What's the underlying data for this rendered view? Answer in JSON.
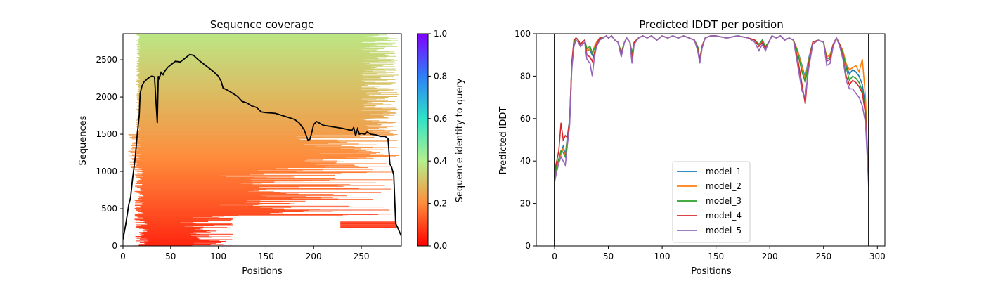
{
  "chart_data": [
    {
      "type": "heatmap",
      "title": "Sequence coverage",
      "xlabel": "Positions",
      "ylabel": "Sequences",
      "xlim": [
        0,
        292
      ],
      "ylim": [
        0,
        2850
      ],
      "xticks": [
        0,
        50,
        100,
        150,
        200,
        250
      ],
      "yticks": [
        0,
        500,
        1000,
        1500,
        2000,
        2500
      ],
      "colorbar": {
        "label": "Sequence identity to query",
        "range": [
          0.0,
          1.0
        ],
        "ticks": [
          "0.0",
          "0.2",
          "0.4",
          "0.6",
          "0.8",
          "1.0"
        ],
        "colormap": "rainbow_r"
      },
      "coverage_line": {
        "color": "#000000",
        "x": [
          0,
          3,
          6,
          8,
          10,
          13,
          15,
          17,
          18,
          20,
          22,
          26,
          30,
          33,
          36,
          37,
          38,
          40,
          42,
          44,
          47,
          50,
          55,
          60,
          65,
          70,
          74,
          78,
          82,
          86,
          90,
          95,
          100,
          103,
          105,
          110,
          115,
          120,
          125,
          130,
          135,
          140,
          145,
          150,
          160,
          170,
          180,
          185,
          190,
          194,
          196,
          198,
          200,
          203,
          206,
          210,
          220,
          230,
          240,
          242,
          244,
          246,
          248,
          250,
          254,
          256,
          260,
          266,
          270,
          275,
          278,
          280,
          282,
          284,
          286,
          288,
          290,
          292
        ],
        "y": [
          90,
          300,
          550,
          650,
          900,
          1200,
          1500,
          1750,
          2050,
          2150,
          2200,
          2250,
          2280,
          2270,
          1650,
          2280,
          2250,
          2330,
          2300,
          2350,
          2400,
          2430,
          2480,
          2470,
          2520,
          2570,
          2560,
          2510,
          2470,
          2430,
          2390,
          2340,
          2280,
          2210,
          2120,
          2090,
          2050,
          2010,
          1940,
          1920,
          1880,
          1860,
          1800,
          1790,
          1780,
          1740,
          1700,
          1650,
          1560,
          1420,
          1430,
          1520,
          1630,
          1670,
          1650,
          1620,
          1600,
          1580,
          1550,
          1590,
          1480,
          1570,
          1500,
          1510,
          1500,
          1530,
          1500,
          1490,
          1470,
          1470,
          1440,
          1100,
          1050,
          950,
          300,
          250,
          190,
          130
        ]
      }
    },
    {
      "type": "line",
      "title": "Predicted lDDT per position",
      "xlabel": "Positions",
      "ylabel": "Predicted lDDT",
      "xlim": [
        -17,
        307
      ],
      "ylim": [
        0,
        100
      ],
      "xticks": [
        0,
        50,
        100,
        150,
        200,
        250,
        300
      ],
      "yticks": [
        0,
        20,
        40,
        60,
        80,
        100
      ],
      "vlines": [
        0,
        292
      ],
      "legend": {
        "position": "lower-center"
      },
      "x": [
        0,
        2,
        4,
        6,
        8,
        10,
        12,
        14,
        16,
        18,
        20,
        22,
        24,
        26,
        28,
        30,
        33,
        35,
        37,
        39,
        42,
        45,
        48,
        50,
        53,
        56,
        59,
        62,
        65,
        67,
        70,
        72,
        74,
        78,
        82,
        86,
        90,
        95,
        100,
        105,
        110,
        115,
        120,
        125,
        130,
        133,
        135,
        137,
        140,
        145,
        150,
        160,
        170,
        180,
        186,
        190,
        193,
        196,
        199,
        202,
        206,
        210,
        214,
        218,
        222,
        226,
        230,
        233,
        236,
        240,
        245,
        250,
        253,
        256,
        259,
        262,
        265,
        268,
        271,
        274,
        277,
        280,
        283,
        286,
        289,
        292
      ],
      "series": [
        {
          "name": "model_1",
          "color": "#1f77b4",
          "values": [
            33,
            38,
            41,
            44,
            47,
            43,
            52,
            60,
            86,
            96,
            98,
            97,
            95,
            96,
            97,
            92,
            92,
            90,
            94,
            96,
            98,
            98,
            99,
            98,
            99,
            97,
            96,
            91,
            96,
            98,
            96,
            90,
            96,
            98,
            99,
            98,
            99,
            97,
            99,
            98,
            99,
            98,
            99,
            98,
            97,
            94,
            88,
            94,
            98,
            99,
            99,
            98,
            99,
            98,
            97,
            95,
            97,
            94,
            96,
            99,
            98,
            99,
            97,
            98,
            97,
            92,
            85,
            79,
            88,
            96,
            97,
            96,
            89,
            90,
            95,
            98,
            95,
            92,
            85,
            81,
            83,
            82,
            80,
            76,
            66,
            28
          ]
        },
        {
          "name": "model_2",
          "color": "#ff7f0e",
          "values": [
            32,
            37,
            40,
            43,
            46,
            42,
            51,
            59,
            85,
            95,
            98,
            97,
            95,
            96,
            97,
            92,
            93,
            91,
            94,
            96,
            98,
            98,
            99,
            98,
            99,
            97,
            96,
            91,
            96,
            98,
            96,
            90,
            96,
            98,
            99,
            98,
            99,
            97,
            99,
            98,
            99,
            98,
            99,
            98,
            97,
            94,
            88,
            94,
            98,
            99,
            99,
            98,
            99,
            98,
            97,
            95,
            97,
            94,
            96,
            99,
            98,
            99,
            97,
            98,
            97,
            92,
            84,
            78,
            87,
            96,
            97,
            96,
            89,
            90,
            95,
            98,
            95,
            92,
            86,
            83,
            84,
            85,
            82,
            88,
            70,
            29
          ]
        },
        {
          "name": "model_3",
          "color": "#2ca02c",
          "values": [
            32,
            38,
            41,
            45,
            44,
            42,
            50,
            58,
            84,
            96,
            98,
            97,
            95,
            96,
            97,
            93,
            94,
            91,
            93,
            95,
            98,
            98,
            99,
            98,
            99,
            97,
            96,
            91,
            96,
            98,
            96,
            91,
            96,
            98,
            99,
            98,
            99,
            97,
            99,
            98,
            99,
            98,
            99,
            98,
            97,
            94,
            88,
            94,
            98,
            99,
            99,
            98,
            99,
            98,
            97,
            95,
            97,
            94,
            96,
            99,
            98,
            99,
            97,
            98,
            97,
            91,
            82,
            77,
            86,
            96,
            97,
            96,
            88,
            89,
            95,
            98,
            95,
            91,
            84,
            78,
            80,
            79,
            77,
            73,
            64,
            30
          ]
        },
        {
          "name": "model_4",
          "color": "#d62728",
          "values": [
            35,
            40,
            45,
            58,
            50,
            52,
            51,
            59,
            86,
            97,
            98,
            97,
            95,
            96,
            97,
            90,
            89,
            87,
            91,
            95,
            98,
            98,
            99,
            98,
            99,
            97,
            96,
            90,
            96,
            98,
            96,
            88,
            96,
            98,
            99,
            98,
            99,
            97,
            99,
            98,
            99,
            98,
            99,
            98,
            97,
            93,
            87,
            94,
            98,
            99,
            99,
            98,
            99,
            98,
            97,
            94,
            96,
            93,
            96,
            99,
            98,
            99,
            97,
            98,
            97,
            88,
            76,
            67,
            85,
            96,
            97,
            96,
            87,
            88,
            95,
            98,
            95,
            89,
            80,
            76,
            78,
            77,
            75,
            72,
            62,
            31
          ]
        },
        {
          "name": "model_5",
          "color": "#9467bd",
          "values": [
            30,
            35,
            39,
            42,
            40,
            38,
            48,
            57,
            83,
            94,
            97,
            96,
            94,
            95,
            96,
            88,
            86,
            80,
            89,
            94,
            97,
            98,
            99,
            98,
            99,
            97,
            96,
            89,
            96,
            98,
            96,
            86,
            95,
            98,
            99,
            98,
            99,
            97,
            99,
            98,
            99,
            98,
            99,
            98,
            97,
            92,
            86,
            93,
            98,
            99,
            99,
            98,
            99,
            98,
            96,
            92,
            95,
            92,
            96,
            99,
            98,
            99,
            97,
            98,
            97,
            85,
            73,
            70,
            83,
            95,
            97,
            96,
            85,
            86,
            94,
            98,
            94,
            88,
            78,
            74,
            74,
            72,
            70,
            66,
            58,
            28
          ]
        }
      ]
    }
  ]
}
